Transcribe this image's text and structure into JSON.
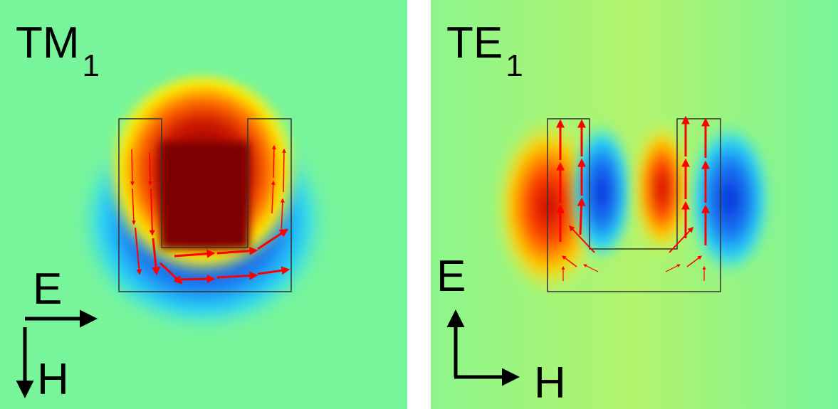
{
  "panels": [
    {
      "mode": "TM",
      "mode_index": "1",
      "axis_labels": {
        "horizontal": "E",
        "vertical": "H"
      },
      "colormap": "jet"
    },
    {
      "mode": "TE",
      "mode_index": "1",
      "axis_labels": {
        "vertical": "E",
        "horizontal": "H"
      },
      "colormap": "jet"
    }
  ],
  "arrow_color": "#ff0000",
  "outline_color": "#333333",
  "background_color": "#78f59a"
}
